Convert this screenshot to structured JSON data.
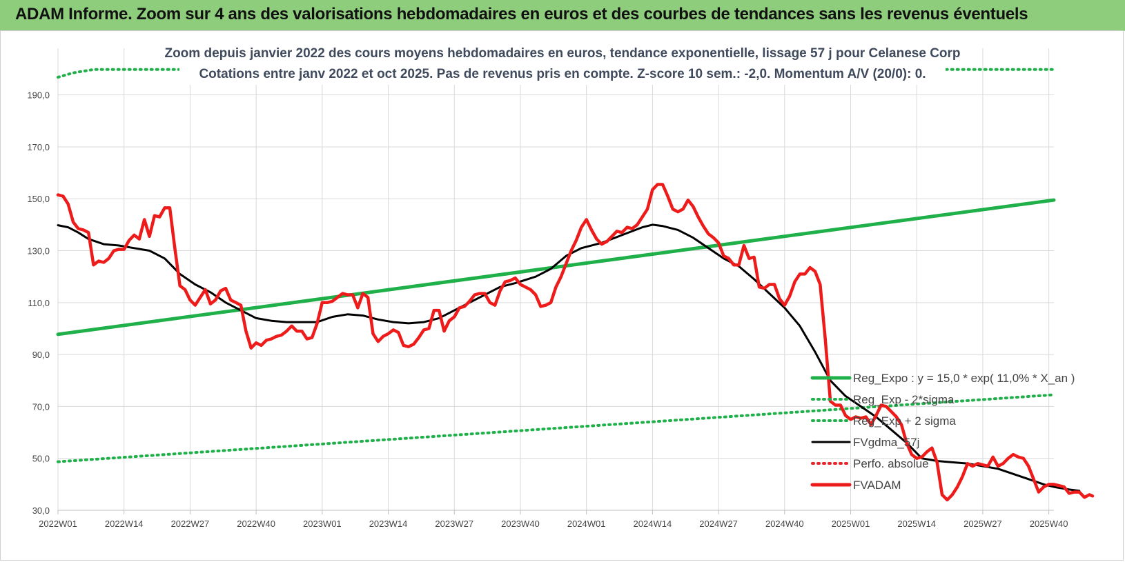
{
  "header": {
    "title": "ADAM Informe. Zoom sur 4 ans des valorisations hebdomadaires en euros et des courbes de tendances sans les revenus éventuels"
  },
  "chart_data": {
    "type": "line",
    "title_line1": "Zoom depuis janvier 2022 des cours moyens hebdomadaires en euros, tendance exponentielle, lissage 57 j pour Celanese Corp",
    "title_line2": "Cotations entre janv 2022 et oct 2025. Pas de revenus pris en compte. Z-score 10 sem.: -2,0.  Momentum A/V (20/0): 0.",
    "ylim": [
      30,
      200
    ],
    "yticks": [
      "30,0",
      "50,0",
      "70,0",
      "90,0",
      "110,0",
      "130,0",
      "150,0",
      "170,0",
      "190,0"
    ],
    "ytick_values": [
      30,
      50,
      70,
      90,
      110,
      130,
      150,
      170,
      190
    ],
    "x_range": [
      0,
      196
    ],
    "xticks": [
      "2022W01",
      "2022W14",
      "2022W27",
      "2022W40",
      "2023W01",
      "2023W14",
      "2023W27",
      "2023W40",
      "2024W01",
      "2024W14",
      "2024W27",
      "2024W40",
      "2025W01",
      "2025W14",
      "2025W27",
      "2025W40"
    ],
    "xtick_positions": [
      0,
      13,
      26,
      39,
      52,
      65,
      78,
      91,
      104,
      117,
      130,
      143,
      156,
      169,
      182,
      195
    ],
    "legend": [
      {
        "name": "Reg_Expo : y = 15,0 * exp( 11,0% *  X_an )",
        "color": "#1fb04a",
        "style": "solid"
      },
      {
        "name": "Reg_Exp - 2*sigma",
        "color": "#1fb04a",
        "style": "dotted"
      },
      {
        "name": "Reg_Exp + 2 sigma",
        "color": "#1fb04a",
        "style": "dotted"
      },
      {
        "name": "FVgdma_57j",
        "color": "#000000",
        "style": "solid"
      },
      {
        "name": "Perfo. absolue",
        "color": "#e8262a",
        "style": "dotted"
      },
      {
        "name": "FVADAM",
        "color": "#ee1b1b",
        "style": "solid"
      }
    ],
    "series": [
      {
        "name": "Reg_Expo",
        "color": "#1fb04a",
        "points": [
          [
            0,
            97.8
          ],
          [
            196,
            149.5
          ]
        ]
      },
      {
        "name": "Reg_Exp - 2*sigma",
        "color": "#1fb04a",
        "points": [
          [
            0,
            48.7
          ],
          [
            196,
            74.5
          ]
        ]
      },
      {
        "name": "Reg_Exp + 2 sigma",
        "color": "#1fb04a",
        "points": [
          [
            0,
            196.8
          ],
          [
            3,
            198.5
          ],
          [
            7,
            199.8
          ],
          [
            23,
            199.8
          ],
          [
            178,
            199.8
          ],
          [
            196,
            199.8
          ]
        ]
      },
      {
        "name": "FVgdma_57j",
        "color": "#000000",
        "points": [
          [
            0,
            139.8
          ],
          [
            2,
            139
          ],
          [
            4,
            137
          ],
          [
            6,
            134.5
          ],
          [
            9,
            132.5
          ],
          [
            12,
            132
          ],
          [
            15,
            131
          ],
          [
            18,
            130
          ],
          [
            21,
            127
          ],
          [
            24,
            121
          ],
          [
            27,
            117
          ],
          [
            30,
            114
          ],
          [
            33,
            110
          ],
          [
            36,
            107
          ],
          [
            39,
            104
          ],
          [
            42,
            103
          ],
          [
            45,
            102.5
          ],
          [
            48,
            102.5
          ],
          [
            51,
            102.5
          ],
          [
            54,
            104.5
          ],
          [
            57,
            105.5
          ],
          [
            60,
            105
          ],
          [
            63,
            103.5
          ],
          [
            66,
            102.5
          ],
          [
            69,
            102
          ],
          [
            72,
            102.5
          ],
          [
            75,
            104
          ],
          [
            78,
            107
          ],
          [
            81,
            110
          ],
          [
            84,
            113
          ],
          [
            87,
            116
          ],
          [
            90,
            117.5
          ],
          [
            94,
            120
          ],
          [
            97,
            123
          ],
          [
            100,
            128
          ],
          [
            103,
            131
          ],
          [
            107,
            133
          ],
          [
            111,
            136
          ],
          [
            115,
            139
          ],
          [
            117,
            140
          ],
          [
            119,
            139.5
          ],
          [
            122,
            138
          ],
          [
            125,
            135
          ],
          [
            128,
            131
          ],
          [
            131,
            127
          ],
          [
            134,
            124
          ],
          [
            137,
            119
          ],
          [
            140,
            113.5
          ],
          [
            143,
            108
          ],
          [
            146,
            101
          ],
          [
            149,
            91
          ],
          [
            152,
            80
          ],
          [
            155,
            74
          ],
          [
            158,
            70
          ],
          [
            161,
            66
          ],
          [
            164,
            61
          ],
          [
            167,
            56
          ],
          [
            170,
            50
          ],
          [
            173,
            49
          ],
          [
            176,
            48.5
          ],
          [
            179,
            48
          ],
          [
            182,
            47
          ],
          [
            185,
            46
          ],
          [
            188,
            44
          ],
          [
            191,
            42
          ],
          [
            194,
            40
          ],
          [
            196,
            39
          ],
          [
            199,
            38
          ],
          [
            201,
            37.5
          ]
        ]
      },
      {
        "name": "FVADAM",
        "color": "#ee1b1b",
        "points": [
          [
            0,
            151.5
          ],
          [
            1,
            151
          ],
          [
            2,
            148
          ],
          [
            3,
            141
          ],
          [
            4,
            138.5
          ],
          [
            5,
            138
          ],
          [
            6,
            137
          ],
          [
            7,
            124.5
          ],
          [
            8,
            126
          ],
          [
            9,
            125.5
          ],
          [
            10,
            127
          ],
          [
            11,
            130
          ],
          [
            12,
            130.5
          ],
          [
            13,
            130.5
          ],
          [
            14,
            134
          ],
          [
            15,
            136
          ],
          [
            16,
            134.5
          ],
          [
            17,
            142
          ],
          [
            18,
            135.5
          ],
          [
            19,
            143.5
          ],
          [
            20,
            143
          ],
          [
            21,
            146.5
          ],
          [
            22,
            146.5
          ],
          [
            23,
            131
          ],
          [
            24,
            116.5
          ],
          [
            25,
            115
          ],
          [
            26,
            111
          ],
          [
            27,
            109
          ],
          [
            28,
            112
          ],
          [
            29,
            115
          ],
          [
            30,
            109.5
          ],
          [
            31,
            111
          ],
          [
            32,
            114.5
          ],
          [
            33,
            115.5
          ],
          [
            34,
            111
          ],
          [
            35,
            110
          ],
          [
            36,
            109
          ],
          [
            37,
            99
          ],
          [
            38,
            92.5
          ],
          [
            39,
            94.5
          ],
          [
            40,
            93.5
          ],
          [
            41,
            95.5
          ],
          [
            42,
            96
          ],
          [
            43,
            97
          ],
          [
            44,
            97.5
          ],
          [
            45,
            99
          ],
          [
            46,
            101
          ],
          [
            47,
            99
          ],
          [
            48,
            99
          ],
          [
            49,
            96
          ],
          [
            50,
            96.5
          ],
          [
            51,
            102
          ],
          [
            52,
            110
          ],
          [
            53,
            110
          ],
          [
            54,
            110.5
          ],
          [
            55,
            112
          ],
          [
            56,
            113.5
          ],
          [
            57,
            113
          ],
          [
            58,
            113
          ],
          [
            59,
            108
          ],
          [
            60,
            113.5
          ],
          [
            61,
            112
          ],
          [
            62,
            98
          ],
          [
            63,
            95
          ],
          [
            64,
            97
          ],
          [
            65,
            98
          ],
          [
            66,
            99.5
          ],
          [
            67,
            98.5
          ],
          [
            68,
            93.5
          ],
          [
            69,
            93
          ],
          [
            70,
            94
          ],
          [
            71,
            96.5
          ],
          [
            72,
            99.5
          ],
          [
            73,
            100
          ],
          [
            74,
            107
          ],
          [
            75,
            107
          ],
          [
            76,
            99
          ],
          [
            77,
            103
          ],
          [
            78,
            104.5
          ],
          [
            79,
            108
          ],
          [
            80,
            108.5
          ],
          [
            81,
            110.5
          ],
          [
            82,
            113
          ],
          [
            83,
            113.5
          ],
          [
            84,
            113.5
          ],
          [
            85,
            110
          ],
          [
            86,
            109
          ],
          [
            87,
            114.5
          ],
          [
            88,
            118
          ],
          [
            89,
            118.5
          ],
          [
            90,
            119.5
          ],
          [
            91,
            117
          ],
          [
            92,
            116
          ],
          [
            93,
            115
          ],
          [
            94,
            113
          ],
          [
            95,
            108.5
          ],
          [
            96,
            109
          ],
          [
            97,
            110
          ],
          [
            98,
            116
          ],
          [
            99,
            120
          ],
          [
            100,
            125
          ],
          [
            101,
            130
          ],
          [
            102,
            134
          ],
          [
            103,
            139
          ],
          [
            104,
            142
          ],
          [
            105,
            138
          ],
          [
            106,
            134.5
          ],
          [
            107,
            132.5
          ],
          [
            108,
            133.5
          ],
          [
            109,
            135.5
          ],
          [
            110,
            137.5
          ],
          [
            111,
            137
          ],
          [
            112,
            139
          ],
          [
            113,
            138.5
          ],
          [
            114,
            140
          ],
          [
            115,
            143
          ],
          [
            116,
            146
          ],
          [
            117,
            153.5
          ],
          [
            118,
            155.5
          ],
          [
            119,
            155.5
          ],
          [
            120,
            151
          ],
          [
            121,
            146
          ],
          [
            122,
            145
          ],
          [
            123,
            146
          ],
          [
            124,
            149.5
          ],
          [
            125,
            147
          ],
          [
            126,
            143
          ],
          [
            127,
            139.5
          ],
          [
            128,
            136.5
          ],
          [
            129,
            135
          ],
          [
            130,
            133
          ],
          [
            131,
            128
          ],
          [
            132,
            127
          ],
          [
            133,
            124.5
          ],
          [
            134,
            124.5
          ],
          [
            135,
            132
          ],
          [
            136,
            127
          ],
          [
            137,
            127.5
          ],
          [
            138,
            116
          ],
          [
            139,
            115.5
          ],
          [
            140,
            117
          ],
          [
            141,
            117
          ],
          [
            142,
            111.5
          ],
          [
            143,
            109
          ],
          [
            144,
            112.5
          ],
          [
            145,
            118
          ],
          [
            146,
            121
          ],
          [
            147,
            121
          ],
          [
            148,
            123.5
          ],
          [
            149,
            122
          ],
          [
            150,
            117
          ],
          [
            151,
            96
          ],
          [
            152,
            72
          ],
          [
            153,
            70.5
          ],
          [
            154,
            70.5
          ],
          [
            155,
            66.5
          ],
          [
            156,
            65
          ],
          [
            157,
            66
          ],
          [
            158,
            65.5
          ],
          [
            159,
            66
          ],
          [
            160,
            63
          ],
          [
            161,
            66.5
          ],
          [
            162,
            70.5
          ],
          [
            163,
            70
          ],
          [
            164,
            68
          ],
          [
            165,
            66
          ],
          [
            166,
            63
          ],
          [
            167,
            56
          ],
          [
            168,
            51.5
          ],
          [
            169,
            50
          ],
          [
            170,
            50.5
          ],
          [
            171,
            52.5
          ],
          [
            172,
            54
          ],
          [
            173,
            48.5
          ],
          [
            174,
            36
          ],
          [
            175,
            34
          ],
          [
            176,
            36
          ],
          [
            177,
            39
          ],
          [
            178,
            43
          ],
          [
            179,
            48
          ],
          [
            180,
            47
          ],
          [
            181,
            48
          ],
          [
            182,
            47.5
          ],
          [
            183,
            47
          ],
          [
            184,
            50.5
          ],
          [
            185,
            47
          ],
          [
            186,
            48
          ],
          [
            187,
            50
          ],
          [
            188,
            51.5
          ],
          [
            189,
            50.5
          ],
          [
            190,
            50
          ],
          [
            191,
            47
          ],
          [
            192,
            42
          ],
          [
            193,
            37
          ],
          [
            194,
            39
          ],
          [
            195,
            40
          ],
          [
            196,
            40
          ],
          [
            197,
            39.5
          ],
          [
            198,
            39
          ],
          [
            199,
            36.5
          ],
          [
            200,
            37
          ],
          [
            201,
            37
          ],
          [
            202,
            35
          ],
          [
            203,
            36
          ],
          [
            204,
            35.5
          ]
        ]
      }
    ]
  }
}
